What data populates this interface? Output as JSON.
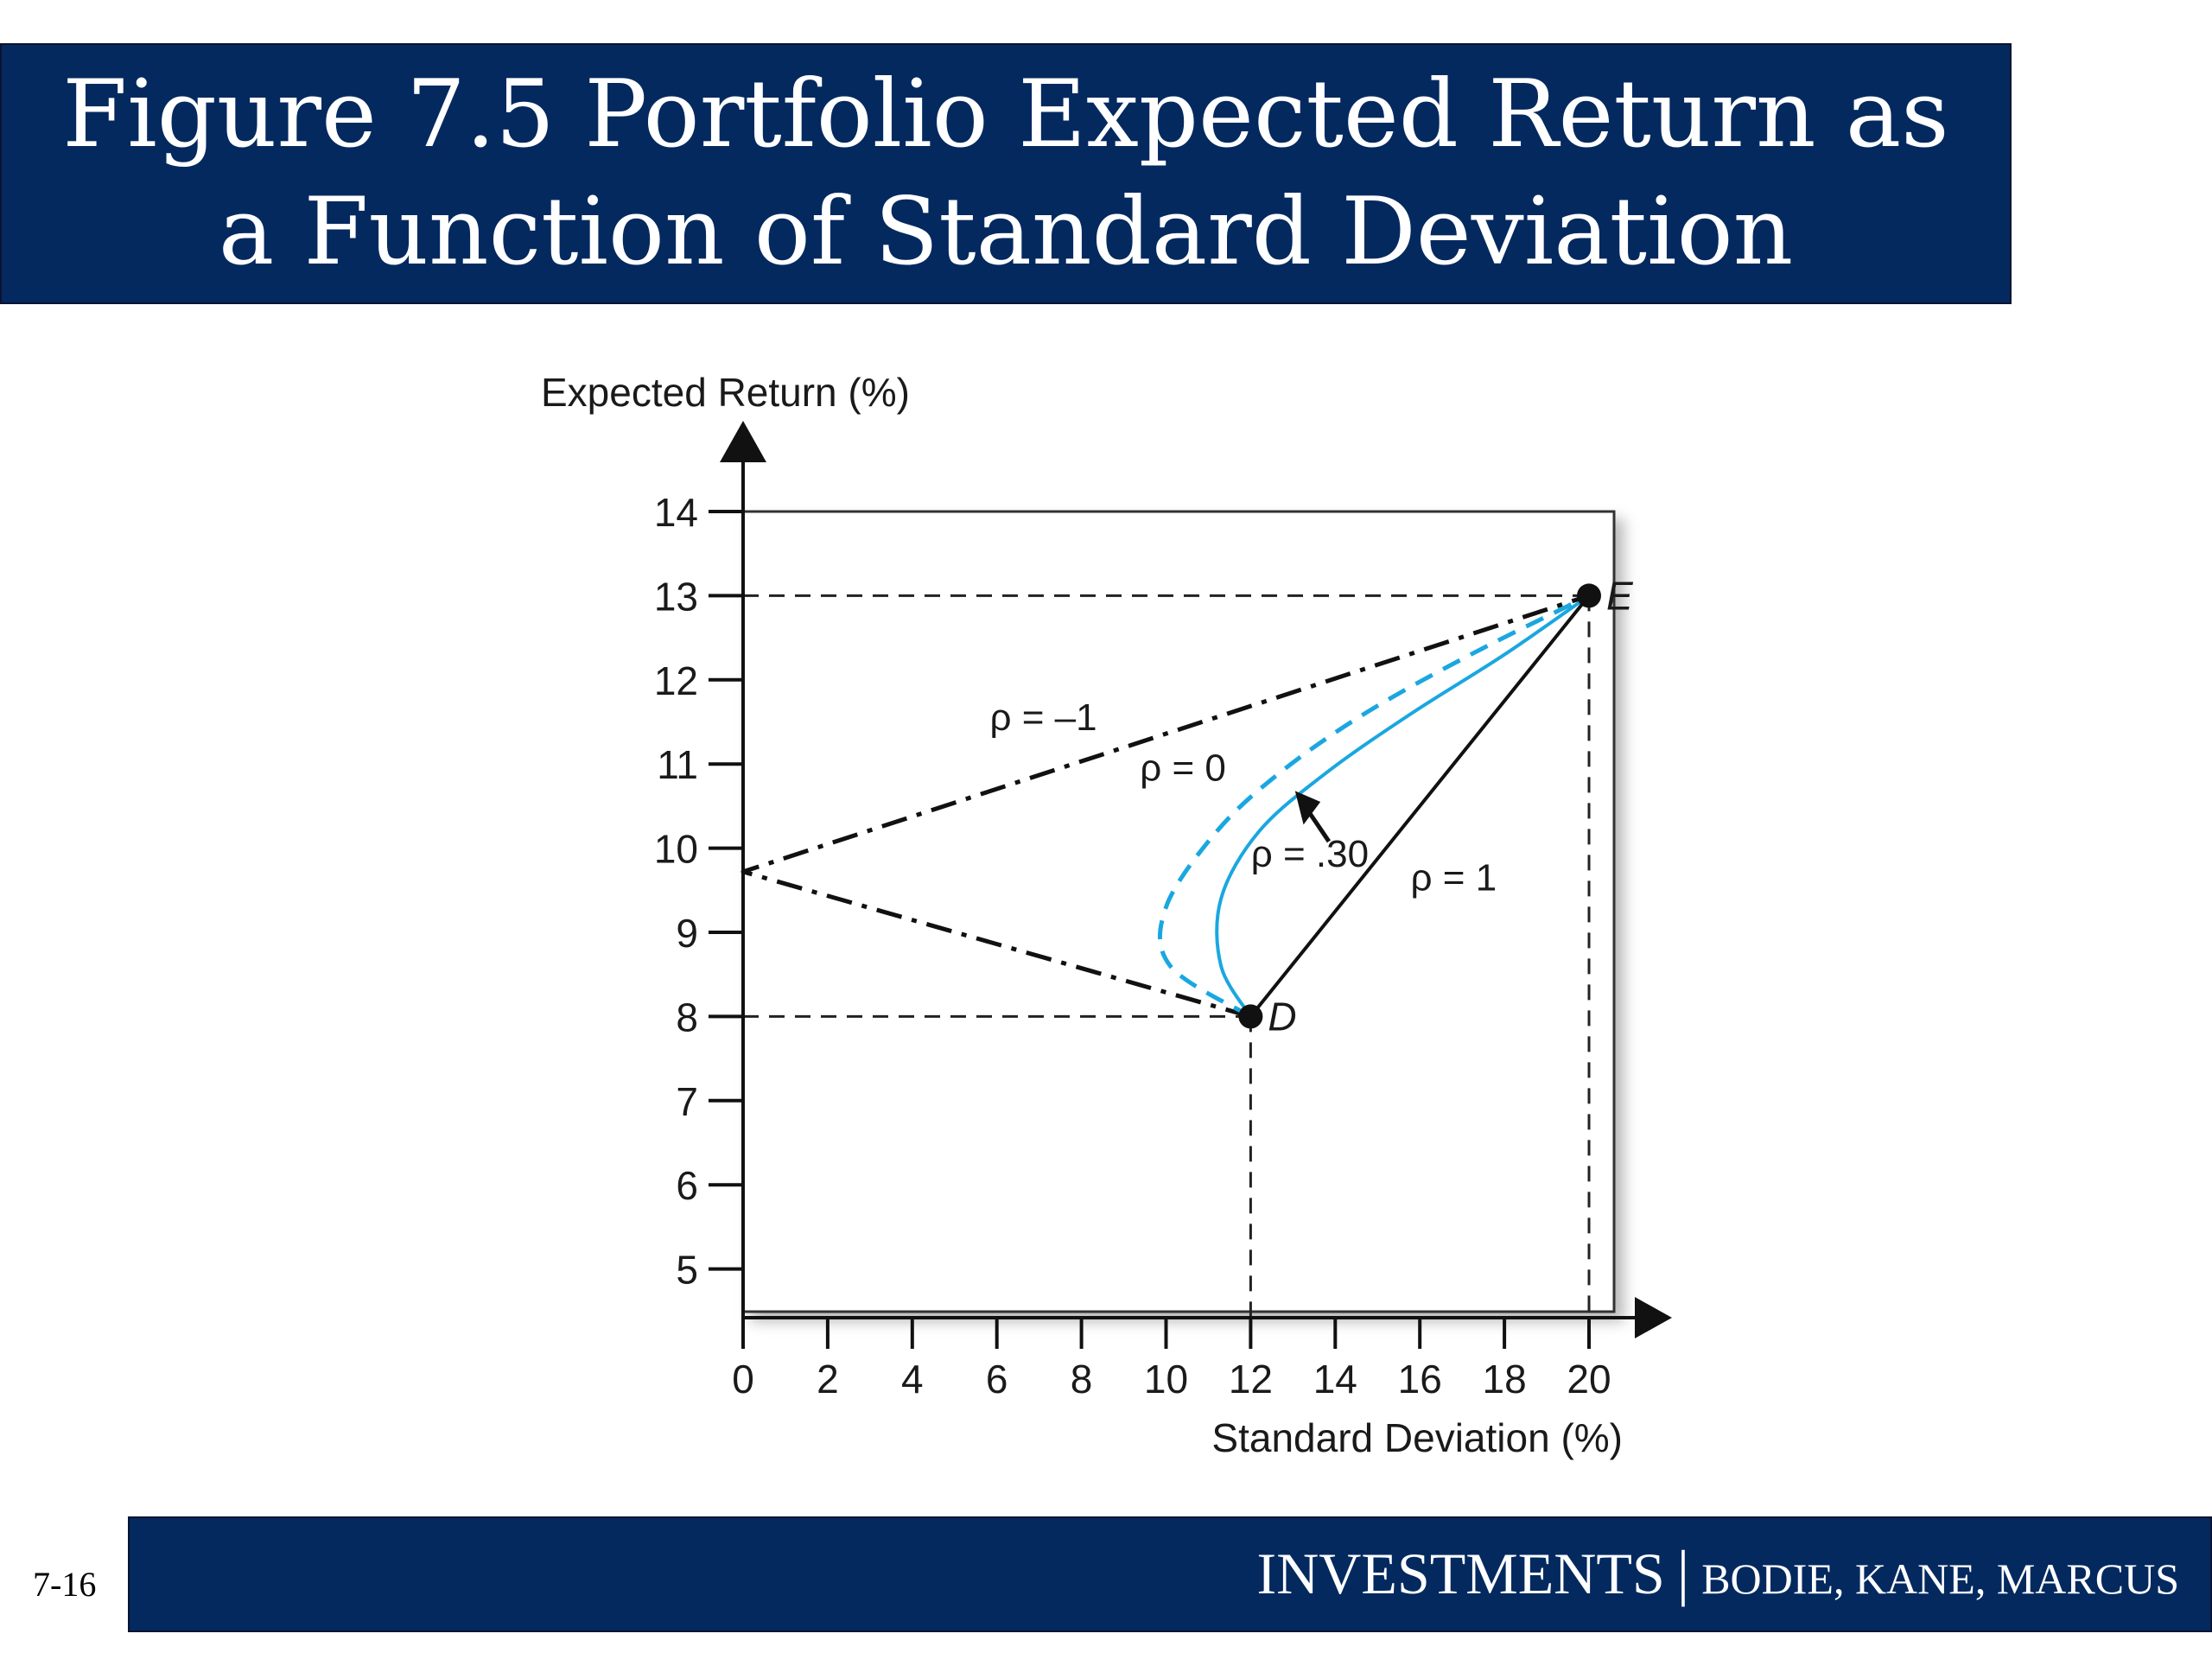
{
  "slide": {
    "title": "Figure 7.5 Portfolio Expected Return as a Function of Standard Deviation",
    "footer_main": "INVESTMENTS",
    "footer_separator": "|",
    "footer_authors": "BODIE, KANE, MARCUS",
    "slide_number": "7-16",
    "colors": {
      "banner": "#03295f",
      "banner_text": "#ffffff",
      "curve": "#1aa7e0",
      "line": "#111111"
    }
  },
  "chart_data": {
    "type": "line",
    "title": "",
    "xlabel": "Standard Deviation (%)",
    "ylabel": "Expected Return (%)",
    "xlim": [
      0,
      20
    ],
    "ylim": [
      4.5,
      14
    ],
    "x_ticks": [
      "0",
      "2",
      "4",
      "6",
      "8",
      "10",
      "12",
      "14",
      "16",
      "18",
      "20"
    ],
    "y_ticks": [
      "5",
      "6",
      "7",
      "8",
      "9",
      "10",
      "11",
      "12",
      "13",
      "14"
    ],
    "grid": false,
    "points": [
      {
        "name": "D",
        "x": 12,
        "y": 8
      },
      {
        "name": "E",
        "x": 20,
        "y": 13
      }
    ],
    "series": [
      {
        "name": "ρ = –1",
        "style": "dash-dot",
        "color": "#111111",
        "x": [
          12,
          0,
          20
        ],
        "y": [
          8,
          9.72,
          13
        ]
      },
      {
        "name": "ρ = 0",
        "style": "dashed",
        "color": "#1aa7e0",
        "x": [
          12,
          10.1,
          10.0,
          11.2,
          12.7,
          14.7,
          17.2,
          20
        ],
        "y": [
          8,
          8.6,
          9.3,
          10.2,
          10.9,
          11.6,
          12.3,
          13
        ]
      },
      {
        "name": "ρ = .30",
        "style": "solid",
        "color": "#1aa7e0",
        "x": [
          12,
          11.3,
          11.3,
          12.2,
          13.8,
          15.8,
          18.0,
          20
        ],
        "y": [
          8,
          8.6,
          9.4,
          10.2,
          10.9,
          11.6,
          12.3,
          13
        ]
      },
      {
        "name": "ρ = 1",
        "style": "solid",
        "color": "#111111",
        "x": [
          12,
          20
        ],
        "y": [
          8,
          13
        ]
      }
    ],
    "annotations": [
      {
        "text": "ρ = –1",
        "x": 7.1,
        "y": 11.4
      },
      {
        "text": "ρ = 0",
        "x": 10.4,
        "y": 10.8
      },
      {
        "text": "ρ = .30",
        "x": 13.4,
        "y": 9.78
      },
      {
        "text": "ρ = 1",
        "x": 16.8,
        "y": 9.5
      }
    ],
    "point_labels": {
      "D": "D",
      "E": "E"
    }
  }
}
